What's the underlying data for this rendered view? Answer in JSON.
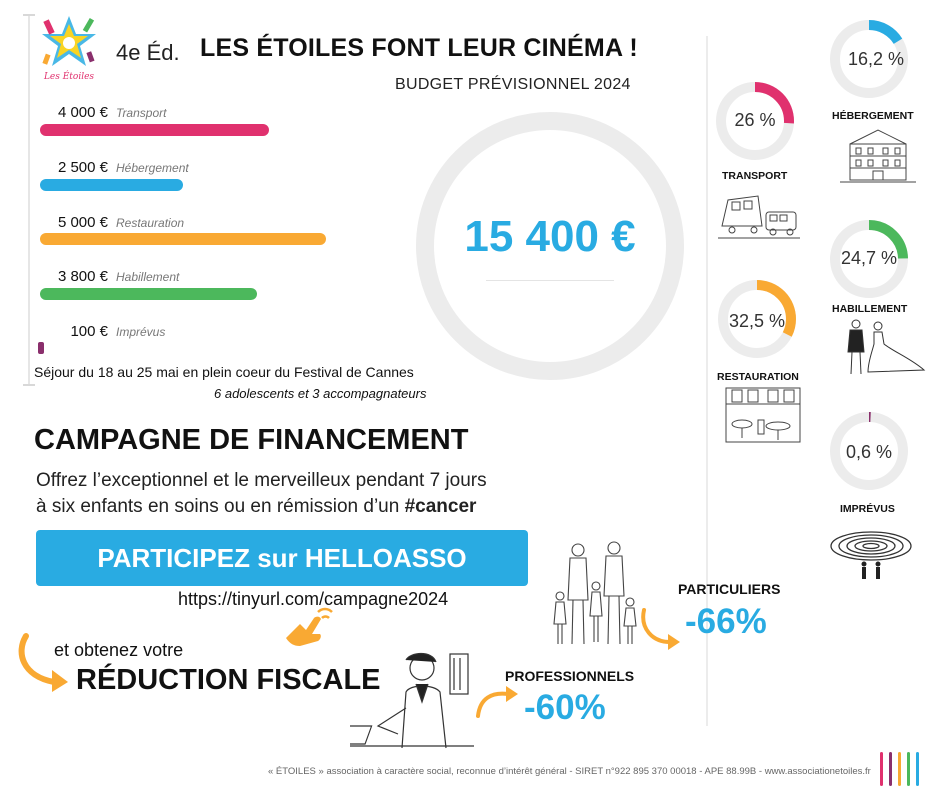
{
  "header": {
    "logo_text": "Les Étoiles",
    "edition": "4e Éd.",
    "title": "LES ÉTOILES FONT LEUR CINÉMA !",
    "subtitle": "BUDGET PRÉVISIONNEL 2024"
  },
  "budget_items": [
    {
      "amount": "4 000 €",
      "category": "Transport",
      "color": "#e0316e",
      "value": 4000
    },
    {
      "amount": "2 500 €",
      "category": "Hébergement",
      "color": "#29abe2",
      "value": 2500
    },
    {
      "amount": "5 000 €",
      "category": "Restauration",
      "color": "#f9a933",
      "value": 5000
    },
    {
      "amount": "3 800 €",
      "category": "Habillement",
      "color": "#4cb85c",
      "value": 3800
    },
    {
      "amount": "100 €",
      "category": "Imprévus",
      "color": "#8a2f6c",
      "value": 100
    }
  ],
  "total": "15 400 €",
  "stay": {
    "dates": "Séjour du 18 au 25 mai en plein coeur du Festival de Cannes",
    "participants": "6 adolescents et 3 accompagnateurs"
  },
  "shares": [
    {
      "key": "hebergement",
      "label": "HÉBERGEMENT",
      "pct_text": "16,2 %",
      "fraction": 0.162,
      "color": "#29abe2"
    },
    {
      "key": "transport",
      "label": "TRANSPORT",
      "pct_text": "26 %",
      "fraction": 0.26,
      "color": "#e0316e"
    },
    {
      "key": "habillement",
      "label": "HABILLEMENT",
      "pct_text": "24,7 %",
      "fraction": 0.247,
      "color": "#4cb85c"
    },
    {
      "key": "restauration",
      "label": "RESTAURATION",
      "pct_text": "32,5 %",
      "fraction": 0.325,
      "color": "#f9a933"
    },
    {
      "key": "imprevus",
      "label": "IMPRÉVUS",
      "pct_text": "0,6 %",
      "fraction": 0.006,
      "color": "#8a2f6c"
    }
  ],
  "campaign": {
    "title": "CAMPAGNE DE FINANCEMENT",
    "line1": "Offrez l’exceptionnel et le merveilleux pendant 7 jours",
    "line2_prefix": "à six enfants en soins ou en rémission d’un ",
    "line2_tag": "#cancer",
    "cta_label": "PARTICIPEZ sur HELLOASSO",
    "url": "https://tinyurl.com/campagne2024"
  },
  "tax": {
    "obtain": "et obtenez votre",
    "reduction": "RÉDUCTION FISCALE",
    "particuliers_label": "PARTICULIERS",
    "particuliers_pct": "-66%",
    "professionnels_label": "PROFESSIONNELS",
    "professionnels_pct": "-60%"
  },
  "footer": "« ÉTOILES » association à caractère social, reconnue d’intérêt général - SIRET n°922 895 370 00018 - APE 88.99B - www.associationetoiles.fr",
  "accent_colors": [
    "#e0316e",
    "#8a2f6c",
    "#f9a933",
    "#4cb85c",
    "#29abe2"
  ]
}
